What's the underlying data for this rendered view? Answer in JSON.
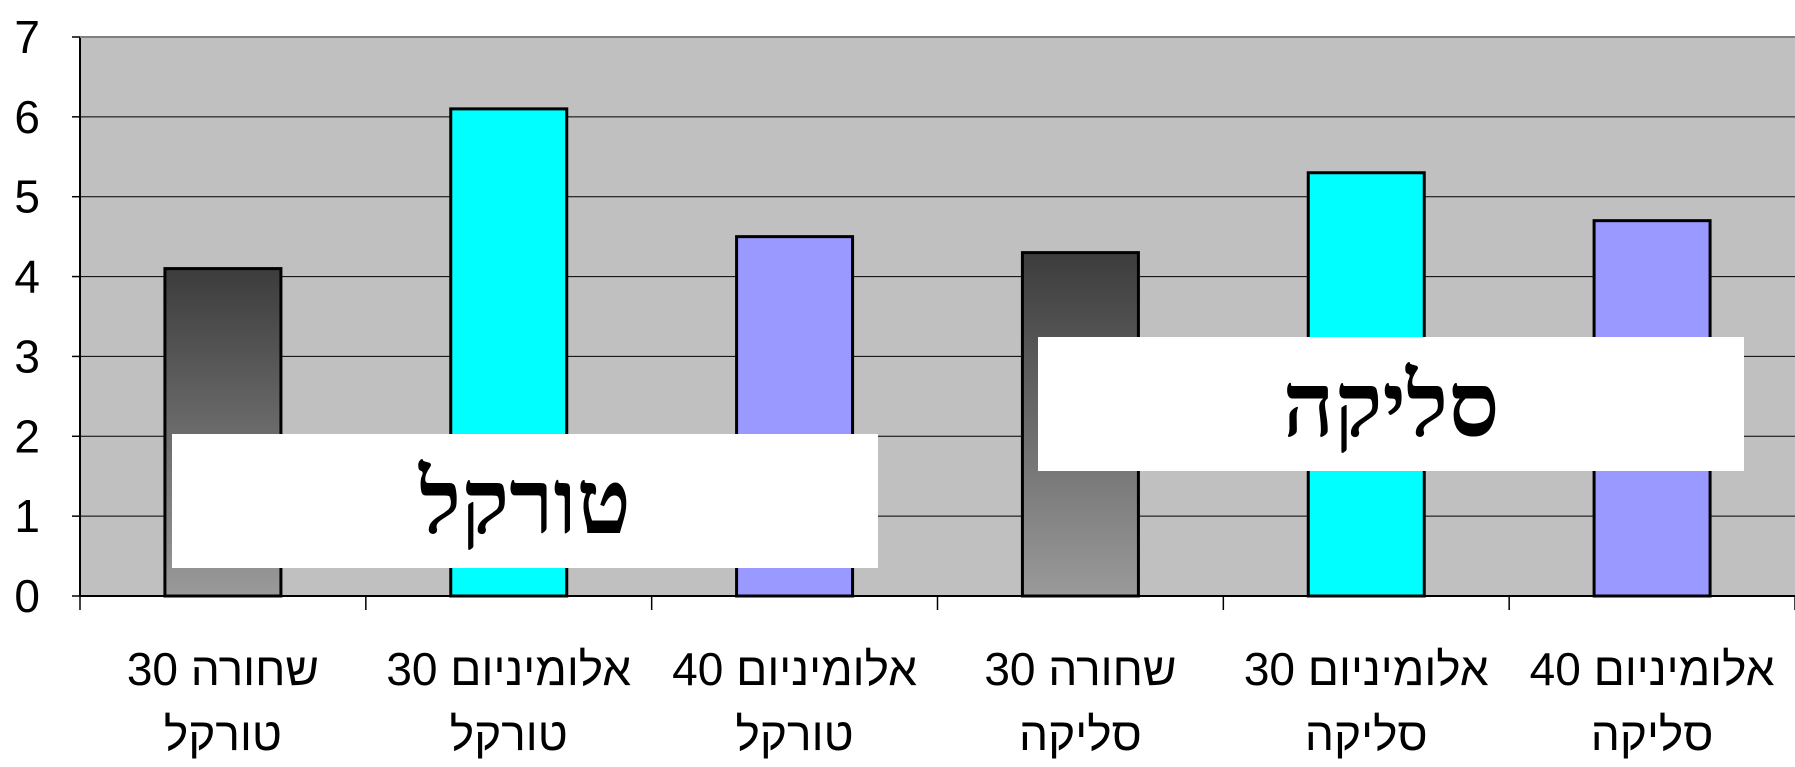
{
  "chart_data": {
    "type": "bar",
    "title": "",
    "xlabel": "",
    "ylabel": "",
    "ylim": [
      0,
      7
    ],
    "yticks": [
      "0",
      "1",
      "2",
      "3",
      "4",
      "5",
      "6",
      "7"
    ],
    "grid": true,
    "background_color": "#c0c0c0",
    "categories": [
      [
        "שחורה 30",
        "טורקל"
      ],
      [
        "אלומיניום 30",
        "טורקל"
      ],
      [
        "אלומיניום 40",
        "טורקל"
      ],
      [
        "שחורה 30",
        "סליקה"
      ],
      [
        "אלומיניום 30",
        "סליקה"
      ],
      [
        "אלומיניום 40",
        "סליקה"
      ]
    ],
    "values": [
      4.1,
      6.1,
      4.5,
      4.3,
      5.3,
      4.7
    ],
    "bar_styles": [
      "dark-gradient",
      "cyan",
      "lavender",
      "dark-gradient",
      "cyan",
      "lavender"
    ],
    "colors": {
      "dark_top": "#3c3c3c",
      "dark_bottom": "#9a9a9a",
      "cyan": "#00ffff",
      "lavender": "#9999ff"
    },
    "annotations": [
      {
        "text": "טורקל",
        "group": "left"
      },
      {
        "text": "סליקה",
        "group": "right"
      }
    ]
  }
}
